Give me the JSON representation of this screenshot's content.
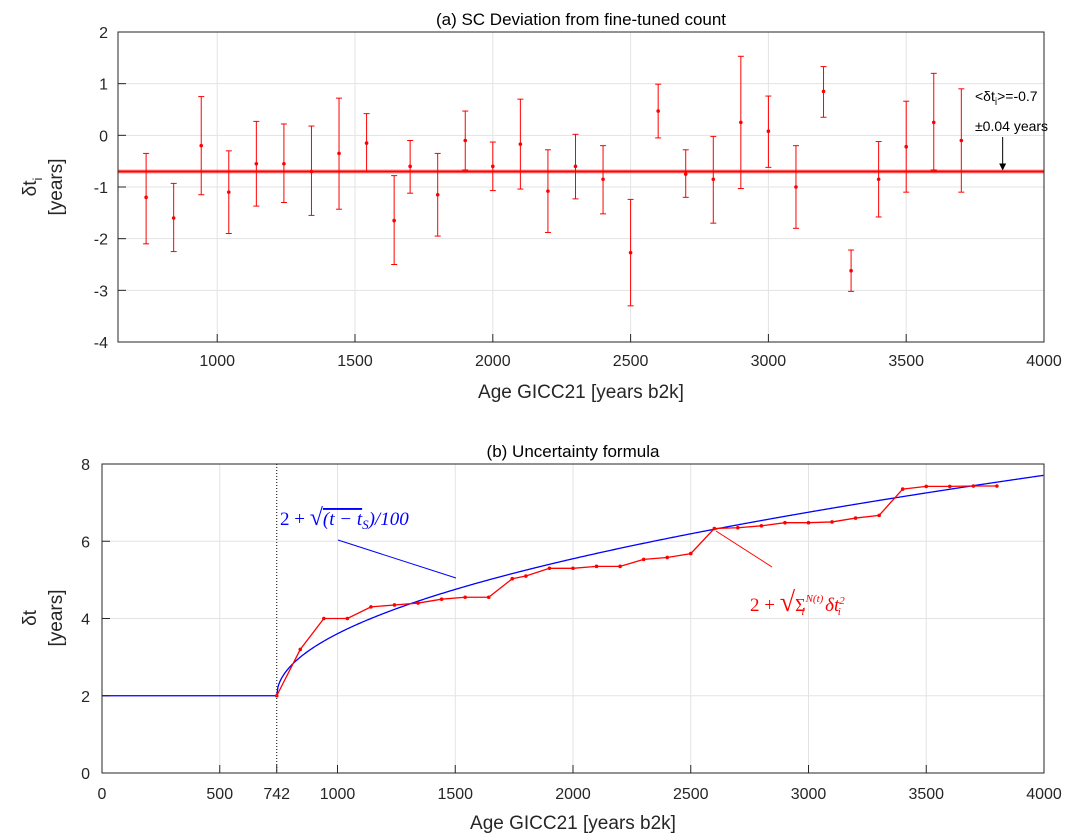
{
  "chart_data": [
    {
      "type": "scatter",
      "title": "(a) SC Deviation from fine-tuned count",
      "xlabel": "Age GICC21 [years b2k]",
      "ylabel_line1": "δt",
      "ylabel_sub": "i",
      "ylabel_line2": "[years]",
      "xlim": [
        640,
        4000
      ],
      "ylim": [
        -4,
        2
      ],
      "xticks": [
        1000,
        1500,
        2000,
        2500,
        3000,
        3500,
        4000
      ],
      "yticks": [
        -4,
        -3,
        -2,
        -1,
        0,
        1,
        2
      ],
      "grid": true,
      "color": "#ff0000",
      "series": [
        {
          "x": [
            742,
            842,
            942,
            1042,
            1142,
            1242,
            1342,
            1442,
            1542,
            1642,
            1700,
            1800,
            1900,
            2000,
            2100,
            2200,
            2300,
            2400,
            2500,
            2600,
            2700,
            2800,
            2900,
            3000,
            3100,
            3200,
            3300,
            3400,
            3500,
            3600,
            3700
          ],
          "y": [
            -1.2,
            -1.6,
            -0.2,
            -1.1,
            -0.55,
            -0.55,
            -0.7,
            -0.35,
            -0.15,
            -1.65,
            -0.6,
            -1.15,
            -0.1,
            -0.6,
            -0.17,
            -1.08,
            -0.6,
            -0.85,
            -2.27,
            0.47,
            -0.75,
            -0.85,
            0.25,
            0.08,
            -1.0,
            0.85,
            -2.62,
            -0.85,
            -0.22,
            0.25,
            -0.1
          ],
          "err_low": [
            0.9,
            0.65,
            0.95,
            0.8,
            0.82,
            0.75,
            0.85,
            1.08,
            0.55,
            0.85,
            0.52,
            0.8,
            0.57,
            0.47,
            0.87,
            0.8,
            0.63,
            0.67,
            1.03,
            0.52,
            0.45,
            0.85,
            1.28,
            0.7,
            0.8,
            0.5,
            0.4,
            0.73,
            0.88,
            0.92,
            1.0
          ],
          "err_high": [
            0.85,
            0.67,
            0.95,
            0.8,
            0.82,
            0.77,
            0.88,
            1.07,
            0.57,
            0.87,
            0.5,
            0.8,
            0.57,
            0.47,
            0.87,
            0.8,
            0.62,
            0.65,
            1.03,
            0.52,
            0.47,
            0.83,
            1.28,
            0.68,
            0.8,
            0.48,
            0.4,
            0.73,
            0.88,
            0.95,
            1.0
          ]
        }
      ],
      "mean_line": {
        "value": -0.7,
        "band": 0.04
      },
      "annotation": {
        "line1_prefix": "<δt",
        "line1_sub": "i",
        "line1_suffix": ">=-0.7",
        "line2": "±0.04  years",
        "arrow_to_x": 3850
      }
    },
    {
      "type": "line",
      "title": "(b) Uncertainty formula",
      "xlabel": "Age GICC21 [years b2k]",
      "ylabel_line1": "δt",
      "ylabel_line2": "[years]",
      "xlim": [
        0,
        4000
      ],
      "ylim": [
        0,
        8
      ],
      "xticks": [
        0,
        500,
        742,
        1000,
        1500,
        2000,
        2500,
        3000,
        3500,
        4000
      ],
      "xtick_labels": [
        "0",
        "500",
        "742",
        "1000",
        "1500",
        "2000",
        "2500",
        "3000",
        "3500",
        "4000"
      ],
      "yticks": [
        0,
        2,
        4,
        6,
        8
      ],
      "grid": true,
      "t_s": 742,
      "series": [
        {
          "style": "blue-formula",
          "color": "#0000ff",
          "formula_label": "2 + √((t − t_S)/100)",
          "base": 2,
          "divisor": 100
        },
        {
          "style": "red-cumulative",
          "color": "#ff0000",
          "formula_label": "2 + √(Σ_i^N(t) δt_i²)",
          "x": [
            742,
            842,
            942,
            1042,
            1142,
            1242,
            1342,
            1442,
            1542,
            1642,
            1742,
            1800,
            1900,
            2000,
            2100,
            2200,
            2300,
            2400,
            2500,
            2600,
            2700,
            2800,
            2900,
            3000,
            3100,
            3200,
            3300,
            3400,
            3500,
            3600,
            3700,
            3800
          ],
          "y": [
            2.0,
            3.2,
            4.0,
            4.0,
            4.3,
            4.35,
            4.4,
            4.5,
            4.55,
            4.55,
            5.03,
            5.1,
            5.3,
            5.3,
            5.35,
            5.35,
            5.53,
            5.58,
            5.68,
            6.33,
            6.35,
            6.4,
            6.48,
            6.48,
            6.5,
            6.6,
            6.67,
            7.35,
            7.42,
            7.42,
            7.43,
            7.43
          ]
        }
      ]
    }
  ]
}
